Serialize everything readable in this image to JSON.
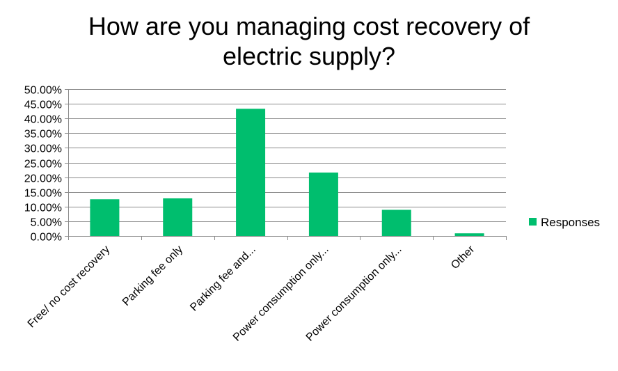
{
  "chart_data": {
    "type": "bar",
    "title_lines": [
      "How are you managing cost recovery of",
      "electric supply?"
    ],
    "categories": [
      "Free/ no cost recovery",
      "Parking fee only",
      "Parking fee and...",
      "Power consumption only...",
      "Power consumption only...",
      "Other"
    ],
    "series": [
      {
        "name": "Responses",
        "values": [
          0.125,
          0.128,
          0.433,
          0.216,
          0.089,
          0.009
        ],
        "color": "#00be6e"
      }
    ],
    "ylim": [
      0,
      0.5
    ],
    "y_ticks": [
      "0.00%",
      "5.00%",
      "10.00%",
      "15.00%",
      "20.00%",
      "25.00%",
      "30.00%",
      "35.00%",
      "40.00%",
      "45.00%",
      "50.00%"
    ],
    "grid": true,
    "legend": "right"
  }
}
